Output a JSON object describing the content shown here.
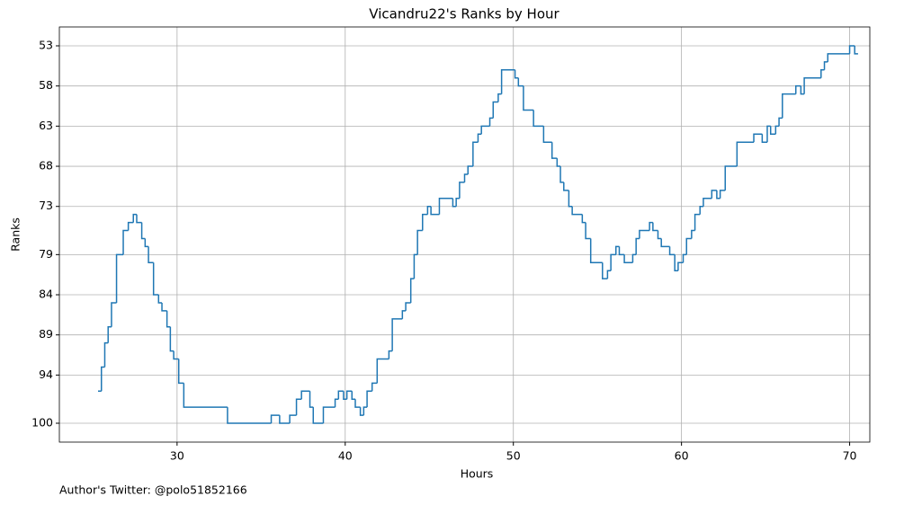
{
  "chart_data": {
    "type": "step",
    "drawstyle": "steps-post",
    "title": "Vicandru22's Ranks by Hour",
    "xlabel": "Hours",
    "ylabel": "Ranks",
    "footnote": "Author's Twitter: @polo51852166",
    "color": "#1f77b4",
    "grid": true,
    "xlim": [
      23,
      71.2
    ],
    "xticks": [
      30,
      40,
      50,
      60,
      70
    ],
    "ylim": [
      102.35,
      50.65
    ],
    "yticks": [
      53,
      58,
      63,
      68,
      73,
      79,
      84,
      89,
      94,
      100
    ],
    "x": [
      25.3,
      25.5,
      25.7,
      25.9,
      26.1,
      26.4,
      26.8,
      27.1,
      27.4,
      27.6,
      27.9,
      28.1,
      28.3,
      28.6,
      28.9,
      29.1,
      29.4,
      29.6,
      29.8,
      30.1,
      30.4,
      33.0,
      35.6,
      36.1,
      36.7,
      37.1,
      37.4,
      37.9,
      38.1,
      38.7,
      39.4,
      39.6,
      39.9,
      40.1,
      40.4,
      40.6,
      40.9,
      41.1,
      41.3,
      41.6,
      41.9,
      42.6,
      42.8,
      43.4,
      43.6,
      43.9,
      44.1,
      44.3,
      44.6,
      44.9,
      45.1,
      45.6,
      46.4,
      46.6,
      46.8,
      47.1,
      47.3,
      47.6,
      47.9,
      48.1,
      48.6,
      48.8,
      49.1,
      49.3,
      50.1,
      50.3,
      50.6,
      51.2,
      51.8,
      52.3,
      52.6,
      52.8,
      53.0,
      53.3,
      53.5,
      54.1,
      54.3,
      54.6,
      55.3,
      55.6,
      55.8,
      56.1,
      56.3,
      56.6,
      57.1,
      57.3,
      57.5,
      58.1,
      58.3,
      58.6,
      58.8,
      59.3,
      59.6,
      59.8,
      60.1,
      60.3,
      60.6,
      60.8,
      61.1,
      61.3,
      61.8,
      62.1,
      62.3,
      62.6,
      63.3,
      64.3,
      64.8,
      65.1,
      65.3,
      65.6,
      65.8,
      66.0,
      66.8,
      67.1,
      67.3,
      68.3,
      68.5,
      68.7,
      70.0,
      70.3,
      70.5
    ],
    "values": [
      96,
      93,
      90,
      88,
      85,
      79,
      76,
      75,
      74,
      75,
      77,
      78,
      80,
      84,
      85,
      86,
      88,
      91,
      92,
      95,
      98,
      100,
      99,
      100,
      99,
      97,
      96,
      98,
      100,
      98,
      97,
      96,
      97,
      96,
      97,
      98,
      99,
      98,
      96,
      95,
      92,
      91,
      87,
      86,
      85,
      82,
      79,
      76,
      74,
      73,
      74,
      72,
      73,
      72,
      70,
      69,
      68,
      65,
      64,
      63,
      62,
      60,
      59,
      56,
      57,
      58,
      61,
      63,
      65,
      67,
      68,
      70,
      71,
      73,
      74,
      75,
      77,
      80,
      82,
      81,
      79,
      78,
      79,
      80,
      79,
      77,
      76,
      75,
      76,
      77,
      78,
      79,
      81,
      80,
      79,
      77,
      76,
      74,
      73,
      72,
      71,
      72,
      71,
      68,
      65,
      64,
      65,
      63,
      64,
      63,
      62,
      59,
      58,
      59,
      57,
      56,
      55,
      54,
      53,
      54,
      54
    ]
  }
}
